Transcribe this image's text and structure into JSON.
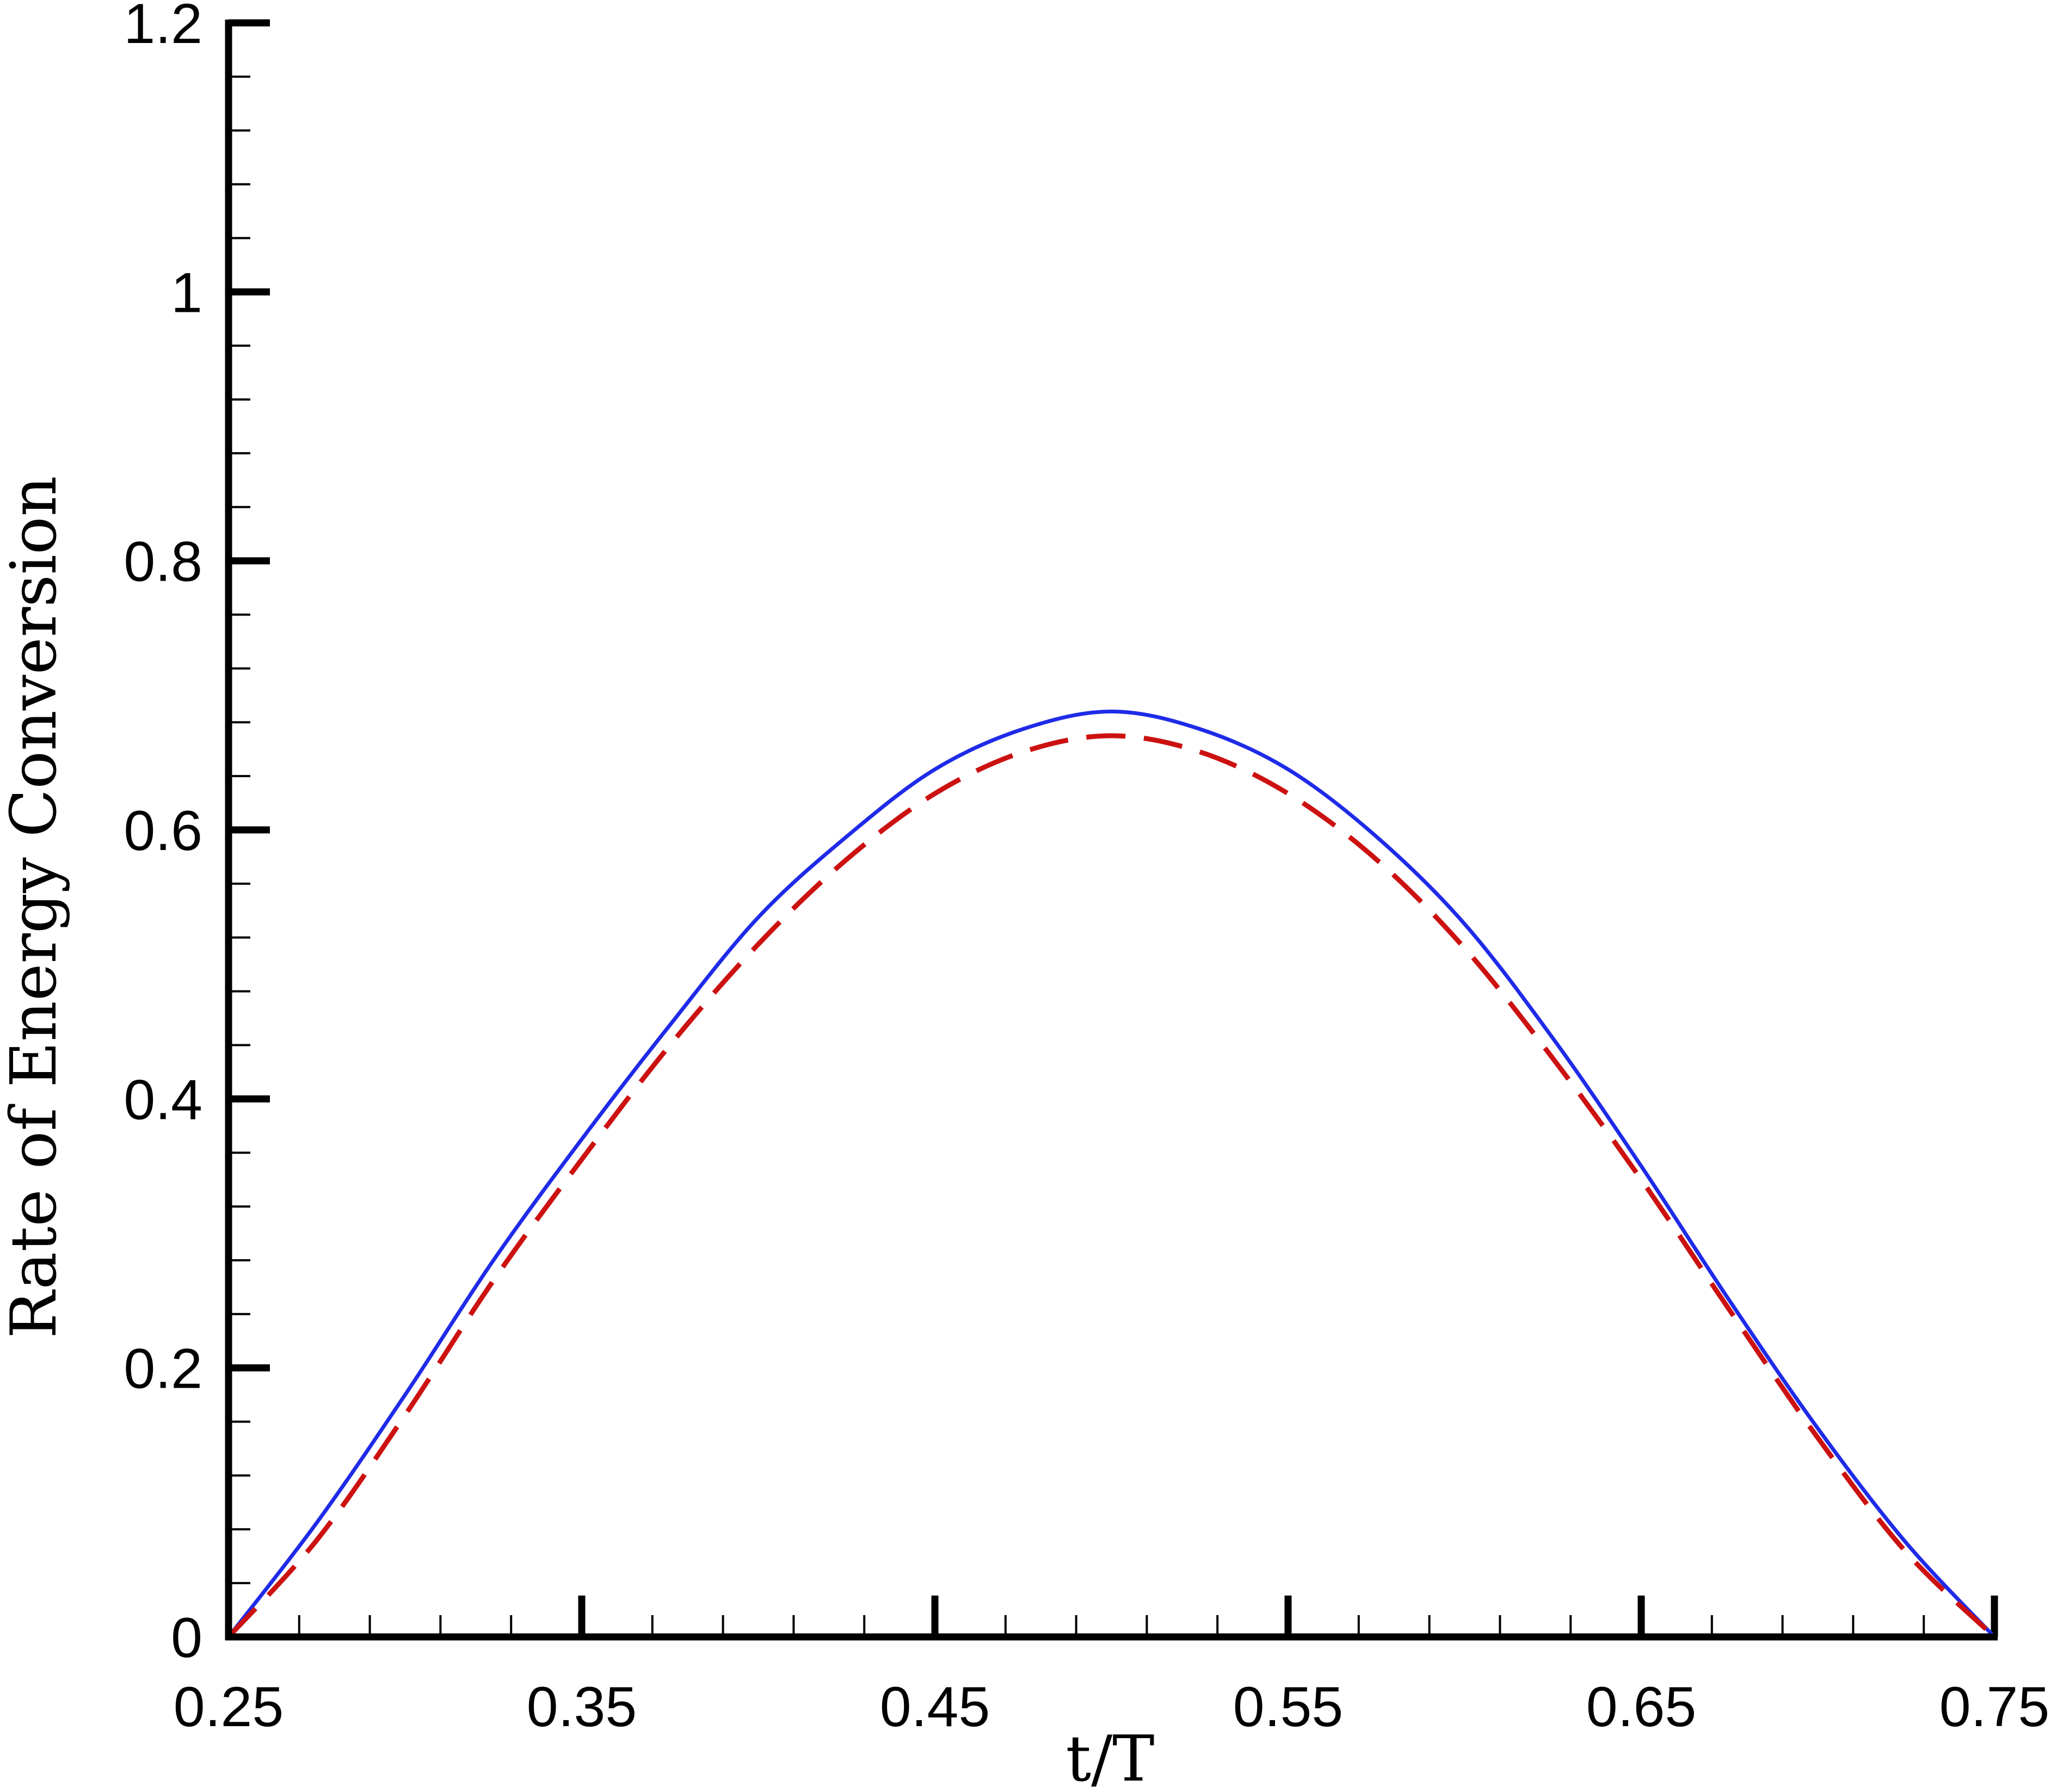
{
  "chart_data": {
    "type": "line",
    "title": "",
    "xlabel": "t/T",
    "ylabel": "Rate of Energy Conversion",
    "xlim": [
      0.25,
      0.75
    ],
    "ylim": [
      0,
      1.2
    ],
    "x_ticks": [
      "0.25",
      "0.35",
      "0.45",
      "0.55",
      "0.65",
      "0.75"
    ],
    "y_ticks": [
      "0",
      "0.2",
      "0.4",
      "0.6",
      "0.8",
      "1",
      "1.2"
    ],
    "x_minor_step": 0.02,
    "y_minor_step": 0.04,
    "grid": false,
    "legend": "none",
    "series": [
      {
        "color": "#1f2be8",
        "style": "solid",
        "x": [
          0.25,
          0.275,
          0.3,
          0.325,
          0.35,
          0.375,
          0.4,
          0.425,
          0.45,
          0.475,
          0.5,
          0.525,
          0.55,
          0.575,
          0.6,
          0.625,
          0.65,
          0.675,
          0.7,
          0.725,
          0.75
        ],
        "y": [
          0.0,
          0.085,
          0.18,
          0.28,
          0.37,
          0.455,
          0.535,
          0.595,
          0.645,
          0.675,
          0.688,
          0.675,
          0.645,
          0.595,
          0.53,
          0.445,
          0.35,
          0.25,
          0.155,
          0.07,
          0.0
        ]
      },
      {
        "color": "#cc1111",
        "style": "dashed",
        "x": [
          0.25,
          0.275,
          0.3,
          0.325,
          0.35,
          0.375,
          0.4,
          0.425,
          0.45,
          0.475,
          0.5,
          0.525,
          0.55,
          0.575,
          0.6,
          0.625,
          0.65,
          0.675,
          0.7,
          0.725,
          0.75
        ],
        "y": [
          0.0,
          0.072,
          0.165,
          0.265,
          0.355,
          0.44,
          0.515,
          0.578,
          0.627,
          0.658,
          0.67,
          0.658,
          0.627,
          0.578,
          0.512,
          0.43,
          0.34,
          0.243,
          0.148,
          0.063,
          0.0
        ]
      }
    ]
  }
}
